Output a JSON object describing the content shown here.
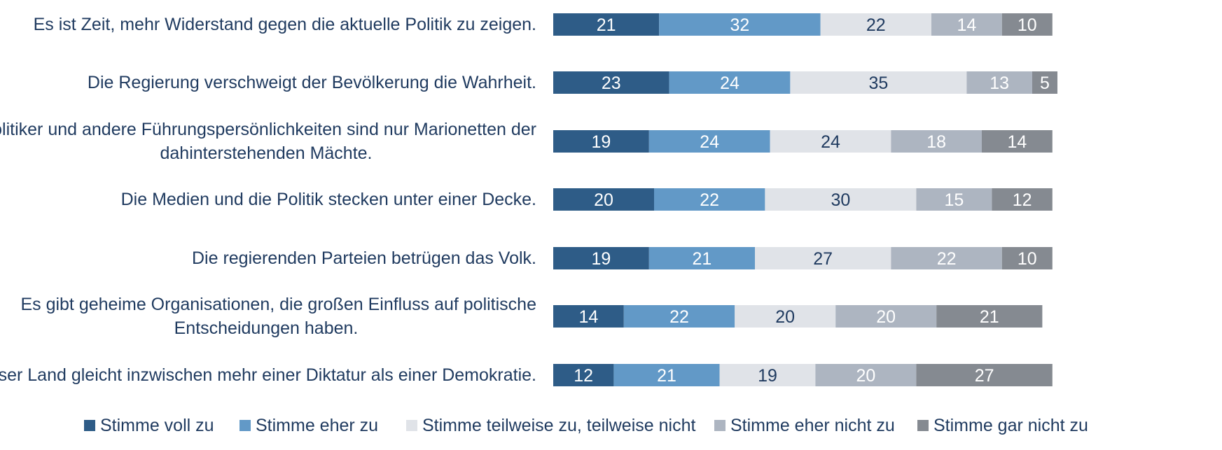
{
  "chart_data": {
    "type": "bar",
    "orientation": "horizontal",
    "stacked": true,
    "categories": [
      "Es ist Zeit, mehr Widerstand gegen die aktuelle Politik zu zeigen.",
      "Die Regierung verschweigt der Bevölkerung die Wahrheit.",
      "Politiker und andere Führungspersönlichkeiten sind nur Marionetten der dahinterstehenden Mächte.",
      "Die Medien und die Politik stecken unter einer Decke.",
      "Die regierenden Parteien betrügen das Volk.",
      "Es gibt geheime Organisationen, die großen Einfluss auf politische Entscheidungen haben.",
      "Unser Land gleicht inzwischen mehr einer Diktatur als einer Demokratie."
    ],
    "category_lines": [
      [
        "Es ist Zeit, mehr Widerstand gegen die aktuelle Politik zu zeigen."
      ],
      [
        "Die Regierung verschweigt der Bevölkerung die Wahrheit."
      ],
      [
        "Politiker und andere Führungspersönlichkeiten sind nur Marionetten der",
        "dahinterstehenden Mächte."
      ],
      [
        "Die Medien und die Politik stecken unter einer Decke."
      ],
      [
        "Die regierenden Parteien betrügen das Volk."
      ],
      [
        "Es gibt geheime Organisationen, die großen Einfluss auf politische",
        "Entscheidungen haben."
      ],
      [
        "Unser Land gleicht inzwischen mehr einer Diktatur als einer Demokratie."
      ]
    ],
    "series": [
      {
        "name": "Stimme voll zu",
        "color": "#2e5c87",
        "label_color": "#ffffff",
        "values": [
          21,
          23,
          19,
          20,
          19,
          14,
          12
        ]
      },
      {
        "name": "Stimme eher zu",
        "color": "#6299c7",
        "label_color": "#ffffff",
        "values": [
          32,
          24,
          24,
          22,
          21,
          22,
          21
        ]
      },
      {
        "name": "Stimme teilweise zu, teilweise nicht",
        "color": "#e0e3e8",
        "label_color": "#1f3a5f",
        "values": [
          22,
          35,
          24,
          30,
          27,
          20,
          19
        ]
      },
      {
        "name": "Stimme eher nicht zu",
        "color": "#adb5c1",
        "label_color": "#ffffff",
        "values": [
          14,
          13,
          18,
          15,
          22,
          20,
          20
        ]
      },
      {
        "name": "Stimme gar nicht zu",
        "color": "#858a91",
        "label_color": "#ffffff",
        "values": [
          10,
          5,
          14,
          12,
          10,
          21,
          27
        ]
      }
    ],
    "legend_position": "bottom",
    "grid": false
  }
}
